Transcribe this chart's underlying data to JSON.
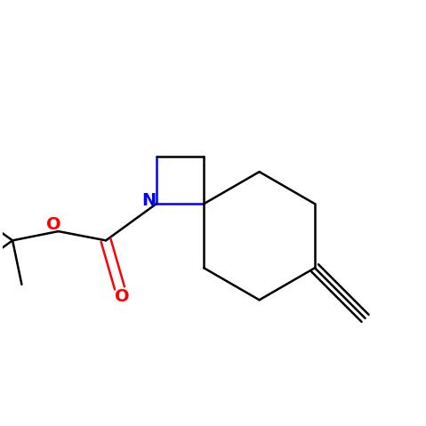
{
  "background_color": "#ffffff",
  "bond_color": "#000000",
  "N_color": "#0000ff",
  "O_color": "#ff0000",
  "line_width": 1.8,
  "figsize": [
    4.79,
    4.79
  ],
  "dpi": 100,
  "xlim": [
    -2.2,
    2.4
  ],
  "ylim": [
    -2.0,
    1.8
  ]
}
